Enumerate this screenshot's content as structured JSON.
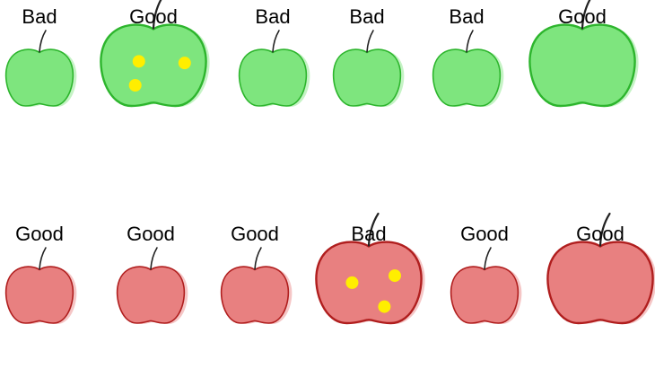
{
  "colors": {
    "green_fill": "#7ee57e",
    "green_outline": "#2db52d",
    "red_fill": "#e88080",
    "red_outline": "#b01e1e",
    "spot": "#ffee00",
    "stem": "#222222"
  },
  "rows": [
    {
      "color": "green",
      "apples": [
        {
          "label": "Bad",
          "size": "small",
          "spots": false
        },
        {
          "label": "Good",
          "size": "large",
          "spots": true
        },
        {
          "label": "Bad",
          "size": "small",
          "spots": false
        },
        {
          "label": "Bad",
          "size": "small",
          "spots": false
        },
        {
          "label": "Bad",
          "size": "small",
          "spots": false
        },
        {
          "label": "Good",
          "size": "large",
          "spots": false
        }
      ]
    },
    {
      "color": "red",
      "apples": [
        {
          "label": "Good",
          "size": "small",
          "spots": false
        },
        {
          "label": "Good",
          "size": "small",
          "spots": false
        },
        {
          "label": "Good",
          "size": "small",
          "spots": false
        },
        {
          "label": "Bad",
          "size": "large",
          "spots": true
        },
        {
          "label": "Good",
          "size": "small",
          "spots": false
        },
        {
          "label": "Good",
          "size": "large",
          "spots": false
        }
      ]
    }
  ]
}
